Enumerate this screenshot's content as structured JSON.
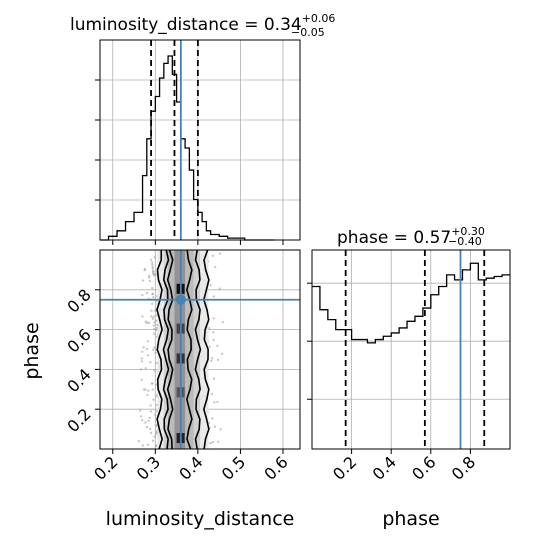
{
  "chart_data": [
    {
      "type": "histogram",
      "panel": "luminosity_distance-marginal",
      "title": {
        "prefix": "luminosity_distance = 0.34",
        "sup": "+0.06",
        "sub": "−0.05"
      },
      "xlim": [
        0.17,
        0.64
      ],
      "ylim": [
        0,
        1.0
      ],
      "xticks": [
        0.2,
        0.3,
        0.4,
        0.5,
        0.6
      ],
      "quantiles": [
        0.29,
        0.345,
        0.4
      ],
      "truth": 0.36,
      "bins": [
        0.17,
        0.19,
        0.21,
        0.23,
        0.25,
        0.27,
        0.28,
        0.29,
        0.3,
        0.31,
        0.32,
        0.33,
        0.34,
        0.35,
        0.36,
        0.37,
        0.38,
        0.39,
        0.4,
        0.41,
        0.42,
        0.43,
        0.45,
        0.47,
        0.49,
        0.51,
        0.53,
        0.55,
        0.58
      ],
      "counts": [
        0.0,
        0.02,
        0.05,
        0.1,
        0.15,
        0.35,
        0.55,
        0.7,
        0.78,
        0.88,
        0.96,
        1.0,
        0.9,
        0.75,
        0.55,
        0.5,
        0.38,
        0.22,
        0.15,
        0.1,
        0.05,
        0.03,
        0.02,
        0.01,
        0.01,
        0.0,
        0.0,
        0.0
      ]
    },
    {
      "type": "histogram",
      "panel": "phase-marginal",
      "title": {
        "prefix": "phase = 0.57",
        "sup": "+0.30",
        "sub": "−0.40"
      },
      "xlim": [
        0.0,
        1.0
      ],
      "ylim": [
        0,
        1.2
      ],
      "xticks": [
        0.2,
        0.4,
        0.6,
        0.8
      ],
      "quantiles": [
        0.17,
        0.57,
        0.87
      ],
      "truth": 0.75,
      "bins": [
        0.0,
        0.04,
        0.08,
        0.12,
        0.16,
        0.2,
        0.24,
        0.28,
        0.32,
        0.36,
        0.4,
        0.44,
        0.48,
        0.52,
        0.56,
        0.6,
        0.64,
        0.68,
        0.72,
        0.76,
        0.8,
        0.84,
        0.88,
        0.92,
        0.96,
        1.0
      ],
      "counts": [
        0.98,
        0.84,
        0.78,
        0.72,
        0.72,
        0.66,
        0.66,
        0.64,
        0.66,
        0.68,
        0.7,
        0.73,
        0.77,
        0.8,
        0.85,
        0.93,
        0.98,
        1.05,
        1.02,
        1.08,
        1.12,
        1.02,
        1.03,
        1.04,
        1.05
      ]
    },
    {
      "type": "scatter",
      "panel": "2d-corner",
      "xlabel": "luminosity_distance",
      "ylabel": "phase",
      "xlim": [
        0.17,
        0.64
      ],
      "ylim": [
        0.0,
        1.0
      ],
      "xticks": [
        0.2,
        0.3,
        0.4,
        0.5,
        0.6
      ],
      "yticks": [
        0.2,
        0.4,
        0.6,
        0.8
      ],
      "truth": {
        "x": 0.36,
        "y": 0.75
      },
      "contours": [
        {
          "level": "outer",
          "left": 0.31,
          "right": 0.42
        },
        {
          "level": "mid",
          "left": 0.325,
          "right": 0.4
        },
        {
          "level": "inner",
          "left": 0.335,
          "right": 0.38
        }
      ]
    }
  ],
  "colors": {
    "truth": "#4682b4",
    "hist": "#000000",
    "grid": "#b0b0b0",
    "density_dark": "#000000",
    "density_light": "#e0e0e0"
  }
}
